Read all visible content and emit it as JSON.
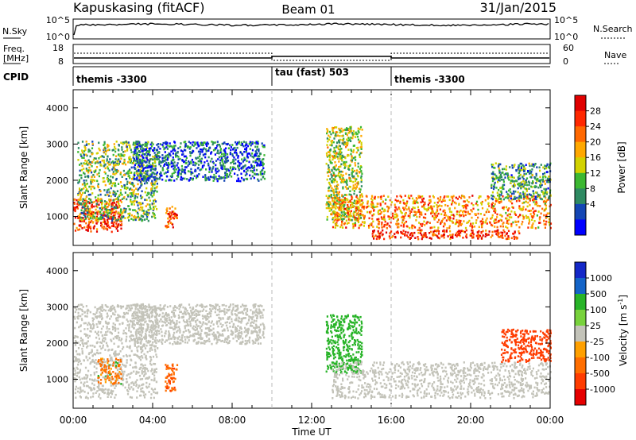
{
  "header": {
    "station": "Kapuskasing (fitACF)",
    "beam": "Beam 01",
    "date": "31/Jan/2015"
  },
  "summary": {
    "nsky_label": "N.Sky",
    "nsky_ticks": [
      "10^5",
      "10^0"
    ],
    "nsearch_label": "N.Search",
    "nsearch_ticks": [
      "10^5",
      "10^0"
    ],
    "freq_label_1": "Freq.",
    "freq_label_2": "[MHz]",
    "freq_ticks": [
      "18",
      "8"
    ],
    "nave_label": "Nave",
    "nave_ticks": [
      "60",
      "0"
    ],
    "cpid_label": "CPID",
    "cpid_segments": [
      "themis -3300",
      "tau (fast) 503",
      "themis -3300"
    ]
  },
  "axes": {
    "xlabel": "Time UT",
    "xticks": [
      "00:00",
      "04:00",
      "08:00",
      "12:00",
      "16:00",
      "20:00",
      "00:00"
    ],
    "ylabel": "Slant Range [km]",
    "yticks": [
      "4000",
      "3000",
      "2000",
      "1000"
    ]
  },
  "colors": {
    "power": [
      "#0000ff",
      "#1446b4",
      "#2e8a62",
      "#3cb832",
      "#d2d200",
      "#ffa800",
      "#ff6800",
      "#ff2800",
      "#e00000"
    ],
    "velocity": [
      "#1428c8",
      "#1464c8",
      "#28b428",
      "#78d23c",
      "#c3c3b9",
      "#ffa000",
      "#ff6e00",
      "#ff3c00",
      "#e60000"
    ]
  },
  "power_scale": {
    "label": "Power [dB]",
    "ticks": [
      "28",
      "24",
      "20",
      "16",
      "12",
      "8",
      "4"
    ]
  },
  "velocity_scale": {
    "label_main": "Velocity [m s",
    "label_sup": "-1",
    "label_end": "]",
    "ticks": [
      "1000",
      "500",
      "100",
      "25",
      "-25",
      "-100",
      "-500",
      "-1000"
    ]
  },
  "chart_data": [
    {
      "type": "heatmap",
      "panel": "power",
      "xlabel": "Time UT",
      "ylabel": "Slant Range [km]",
      "xlim": [
        "00:00",
        "24:00"
      ],
      "ylim": [
        200,
        4500
      ],
      "colorbar_label": "Power [dB]",
      "colorbar_range": [
        0,
        30
      ],
      "echo_regions": [
        {
          "t_start": 0.0,
          "t_end": 2.4,
          "range_start": 600,
          "range_end": 1500,
          "power_db": 26
        },
        {
          "t_start": 0.2,
          "t_end": 4.2,
          "range_start": 900,
          "range_end": 3100,
          "power_db": 12
        },
        {
          "t_start": 3.0,
          "t_end": 9.6,
          "range_start": 2000,
          "range_end": 3100,
          "power_db": 6
        },
        {
          "t_start": 4.6,
          "t_end": 5.2,
          "range_start": 700,
          "range_end": 1300,
          "power_db": 24
        },
        {
          "t_start": 12.7,
          "t_end": 14.5,
          "range_start": 900,
          "range_end": 3500,
          "power_db": 14
        },
        {
          "t_start": 13.0,
          "t_end": 24.0,
          "range_start": 700,
          "range_end": 1600,
          "power_db": 20
        },
        {
          "t_start": 15.0,
          "t_end": 22.5,
          "range_start": 400,
          "range_end": 650,
          "power_db": 26
        },
        {
          "t_start": 21.0,
          "t_end": 24.0,
          "range_start": 1500,
          "range_end": 2500,
          "power_db": 10
        }
      ]
    },
    {
      "type": "heatmap",
      "panel": "velocity",
      "xlabel": "Time UT",
      "ylabel": "Slant Range [km]",
      "xlim": [
        "00:00",
        "24:00"
      ],
      "ylim": [
        200,
        4500
      ],
      "colorbar_label": "Velocity [m s-1]",
      "colorbar_range": [
        -1000,
        1000
      ],
      "echo_regions": [
        {
          "t_start": 0.0,
          "t_end": 4.2,
          "range_start": 500,
          "range_end": 3100,
          "velocity_ms": 0
        },
        {
          "t_start": 1.2,
          "t_end": 2.4,
          "range_start": 900,
          "range_end": 1600,
          "velocity_ms": -150
        },
        {
          "t_start": 4.6,
          "t_end": 5.2,
          "range_start": 700,
          "range_end": 1500,
          "velocity_ms": -400
        },
        {
          "t_start": 3.0,
          "t_end": 9.6,
          "range_start": 2000,
          "range_end": 3100,
          "velocity_ms": 0
        },
        {
          "t_start": 12.7,
          "t_end": 14.5,
          "range_start": 1200,
          "range_end": 2800,
          "velocity_ms": 80
        },
        {
          "t_start": 13.0,
          "t_end": 24.0,
          "range_start": 500,
          "range_end": 1500,
          "velocity_ms": 0
        },
        {
          "t_start": 21.5,
          "t_end": 24.0,
          "range_start": 1500,
          "range_end": 2400,
          "velocity_ms": -700
        }
      ]
    }
  ]
}
